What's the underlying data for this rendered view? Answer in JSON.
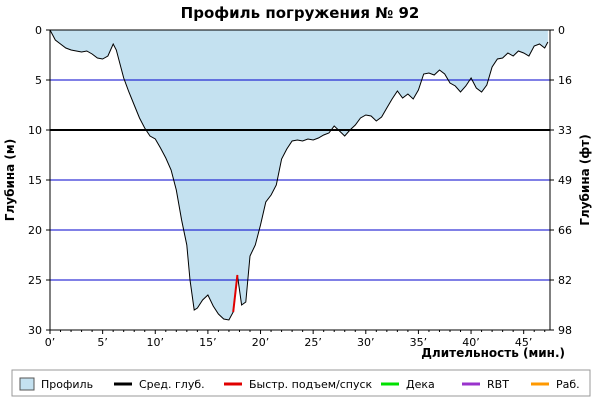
{
  "chart_data": {
    "type": "area",
    "title": "Профиль погружения № 92",
    "xlabel": "Длительность (мин.)",
    "ylabel_left": "Глубина (м)",
    "ylabel_right": "Глубина (фт)",
    "xlim": [
      0,
      47.5
    ],
    "ylim_m": [
      0,
      30
    ],
    "x_ticks": [
      0,
      5,
      10,
      15,
      20,
      25,
      30,
      35,
      40,
      45
    ],
    "x_tick_labels": [
      "0’",
      "5’",
      "10’",
      "15’",
      "20’",
      "25’",
      "30’",
      "35’",
      "40’",
      "45’"
    ],
    "y_ticks_m": [
      0,
      5,
      10,
      15,
      20,
      25,
      30
    ],
    "y_ticks_ft_labels": [
      "0",
      "16",
      "33",
      "49",
      "66",
      "82",
      "98"
    ],
    "grid": true,
    "average_depth_m": 10,
    "colors": {
      "profile_fill": "#c4e1f0",
      "profile_line": "#000000",
      "grid": "#0000cc",
      "avg_depth": "#000000",
      "fast_ascent": "#e00000",
      "deco": "#00e000",
      "rbt": "#9933cc",
      "work": "#ff9900"
    },
    "series": [
      {
        "name": "Профиль",
        "x": [
          0,
          0.3,
          0.5,
          1,
          1.5,
          2,
          2.5,
          3,
          3.5,
          4,
          4.5,
          5,
          5.5,
          6,
          6.3,
          7,
          7.5,
          8,
          8.5,
          9,
          9.5,
          10,
          10.5,
          11,
          11.5,
          12,
          12.5,
          13,
          13.3,
          13.7,
          14,
          14.5,
          15,
          15.5,
          16,
          16.5,
          17,
          17.4,
          17.8,
          18.2,
          18.6,
          19,
          19.5,
          20,
          20.5,
          21,
          21.5,
          22,
          22.5,
          23,
          23.5,
          24,
          24.5,
          25,
          25.5,
          26,
          26.5,
          27,
          27.5,
          28,
          28.5,
          29,
          29.5,
          30,
          30.5,
          31,
          31.5,
          32,
          32.5,
          33,
          33.5,
          34,
          34.5,
          35,
          35.5,
          36,
          36.5,
          37,
          37.5,
          38,
          38.5,
          39,
          39.5,
          40,
          40.5,
          41,
          41.5,
          42,
          42.5,
          43,
          43.5,
          44,
          44.5,
          45,
          45.5,
          46,
          46.5,
          47,
          47.3
        ],
        "depth_m": [
          0,
          0.6,
          1,
          1.4,
          1.8,
          2,
          2.1,
          2.2,
          2.1,
          2.4,
          2.8,
          2.9,
          2.6,
          1.4,
          2,
          4.8,
          6.2,
          7.5,
          8.8,
          9.8,
          10.6,
          10.9,
          11.8,
          12.8,
          14,
          16,
          19,
          21.5,
          25,
          28,
          27.8,
          27,
          26.5,
          27.6,
          28.4,
          28.9,
          29,
          28.2,
          24.5,
          27.5,
          27.2,
          22.6,
          21.5,
          19.5,
          17.2,
          16.5,
          15.5,
          12.9,
          11.9,
          11.1,
          11,
          11.1,
          10.9,
          11,
          10.8,
          10.5,
          10.3,
          9.6,
          10.1,
          10.6,
          10,
          9.5,
          8.8,
          8.5,
          8.6,
          9.1,
          8.7,
          7.8,
          6.9,
          6.1,
          6.8,
          6.4,
          6.9,
          6,
          4.4,
          4.3,
          4.5,
          4,
          4.4,
          5.3,
          5.6,
          6.2,
          5.6,
          4.8,
          5.8,
          6.2,
          5.5,
          3.7,
          2.9,
          2.8,
          2.3,
          2.6,
          2.1,
          2.3,
          2.6,
          1.6,
          1.4,
          1.8,
          1.2,
          0.6,
          0
        ]
      },
      {
        "name": "Быстр. подъем/спуск",
        "x": [
          17.4,
          17.8
        ],
        "depth_m": [
          28.2,
          24.5
        ]
      }
    ],
    "legend": {
      "placement": "bottom",
      "entries": [
        {
          "label": "Профиль",
          "kind": "box",
          "color": "#c4e1f0"
        },
        {
          "label": "Сред. глуб.",
          "kind": "line",
          "color": "#000000"
        },
        {
          "label": "Быстр. подъем/спуск",
          "kind": "line",
          "color": "#e00000"
        },
        {
          "label": "Дека",
          "kind": "line",
          "color": "#00e000"
        },
        {
          "label": "RBT",
          "kind": "line",
          "color": "#9933cc"
        },
        {
          "label": "Раб.",
          "kind": "line",
          "color": "#ff9900"
        }
      ]
    }
  }
}
